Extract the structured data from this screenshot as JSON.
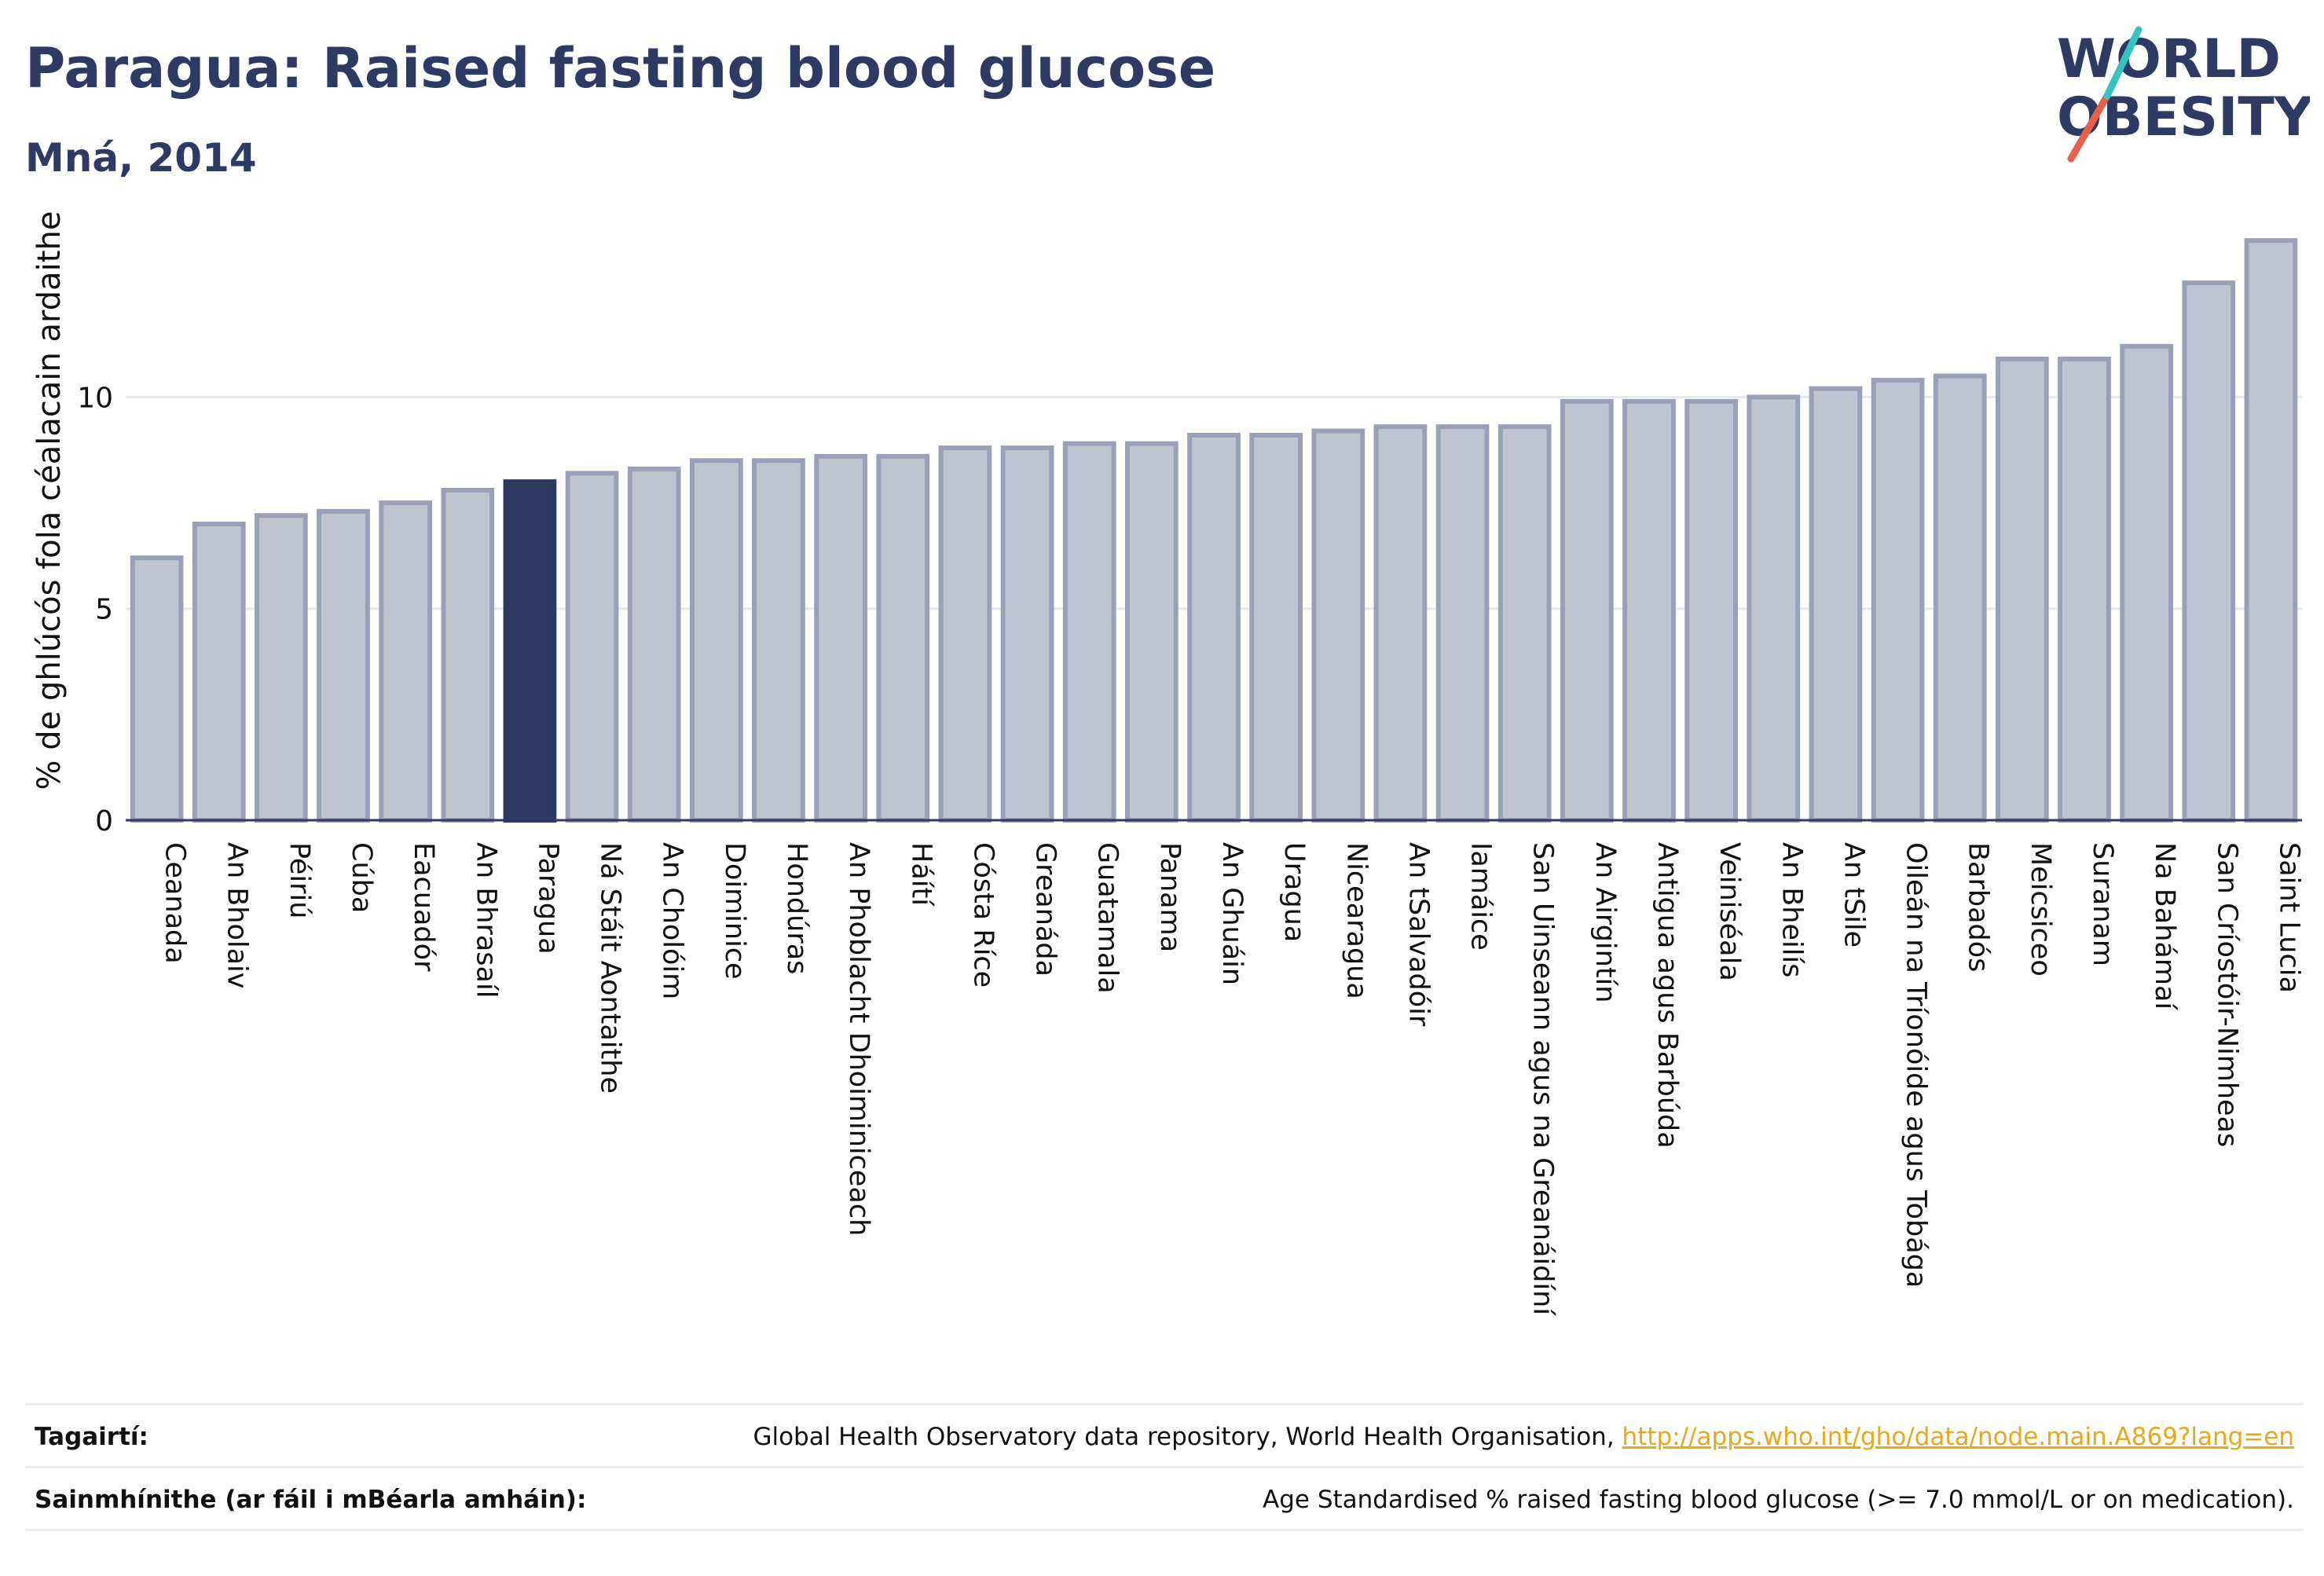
{
  "header": {
    "title": "Paragua: Raised fasting blood glucose",
    "subtitle": "Mná, 2014"
  },
  "logo": {
    "line1": "WORLD",
    "line2": "OBESITY",
    "slash_colors": [
      "#e8604c",
      "#35c3c1"
    ],
    "text_color": "#2d3a63"
  },
  "chart_data": {
    "type": "bar",
    "ylabel": "% de ghlúcós fola céalacain ardaithe",
    "xlabel": "",
    "ylim": [
      0,
      14
    ],
    "yticks": [
      0,
      5,
      10
    ],
    "grid": true,
    "highlight": "Paragua",
    "colors": {
      "bar": "#c0c4d1",
      "bar_stroke": "#99a0b8",
      "highlight": "#2d3a63",
      "axis": "#2d3a63",
      "grid": "#e6e8ee"
    },
    "categories": [
      "Ceanada",
      "An Bholaiv",
      "Péiriú",
      "Cúba",
      "Eacuadór",
      "An Bhrasaíl",
      "Paragua",
      "Ná Stáit Aontaithe",
      "An Cholóim",
      "Doiminice",
      "Hondúras",
      "An Phoblacht Dhoiminiceach",
      "Háítí",
      "Cósta Ríce",
      "Greanáda",
      "Guatamala",
      "Panama",
      "An Ghuáin",
      "Uragua",
      "Nicearagua",
      "An tSalvadóir",
      "Iamáice",
      "San Uinseann agus na Greanáidíní",
      "An Airgintín",
      "Antigua agus Barbúda",
      "Veiniséala",
      "An Bheilís",
      "An tSile",
      "Oileán na Tríonóide agus Tobága",
      "Barbadós",
      "Meicsiceo",
      "Suranam",
      "Na Bahámaí",
      "San Críostóir-Nimheas",
      "Saint Lucia"
    ],
    "values": [
      6.2,
      7.0,
      7.2,
      7.3,
      7.5,
      7.8,
      8.0,
      8.2,
      8.3,
      8.5,
      8.5,
      8.6,
      8.6,
      8.8,
      8.8,
      8.9,
      8.9,
      9.1,
      9.1,
      9.2,
      9.3,
      9.3,
      9.3,
      9.9,
      9.9,
      9.9,
      10.0,
      10.2,
      10.4,
      10.5,
      10.9,
      10.9,
      11.2,
      12.7,
      13.7
    ]
  },
  "references": {
    "sources_label": "Tagairtí:",
    "sources_text": "Global Health Observatory data repository, World Health Organisation, ",
    "sources_link": "http://apps.who.int/gho/data/node.main.A869?lang=en",
    "definitions_label": "Sainmhínithe (ar fáil i mBéarla amháin):",
    "definitions_text": "Age Standardised % raised fasting blood glucose (>= 7.0 mmol/L or on medication)."
  }
}
